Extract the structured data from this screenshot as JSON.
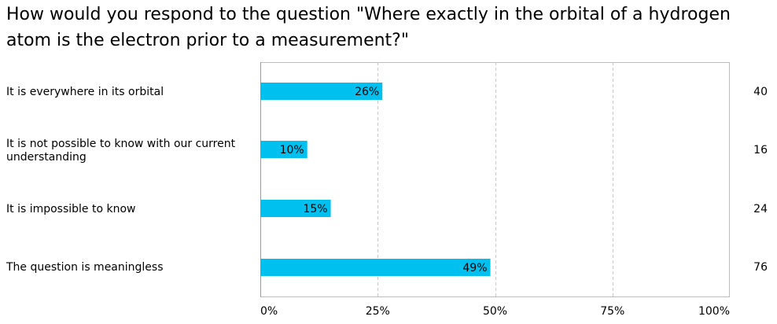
{
  "chart_data": {
    "type": "bar",
    "orientation": "horizontal",
    "title": "How would you respond to the question \"Where exactly in the orbital of a hydrogen atom is the electron prior to a measurement?\"",
    "categories": [
      "It is everywhere in its orbital",
      "It is not possible to know with our current understanding",
      "It is impossible to know",
      "The question is meaningless"
    ],
    "values": [
      26,
      10,
      15,
      49
    ],
    "value_labels": [
      "26%",
      "10%",
      "15%",
      "49%"
    ],
    "counts": [
      "40",
      "16",
      "24",
      "76"
    ],
    "xlim": [
      0,
      100
    ],
    "x_ticks": [
      0,
      25,
      50,
      75,
      100
    ],
    "x_tick_labels": [
      "0%",
      "25%",
      "50%",
      "75%",
      "100%"
    ],
    "xlabel": "",
    "ylabel": "",
    "grid": true,
    "bar_color": "#00C0F0",
    "grid_color": "#C8C8C8",
    "frame_color": "#BDBDBD"
  }
}
